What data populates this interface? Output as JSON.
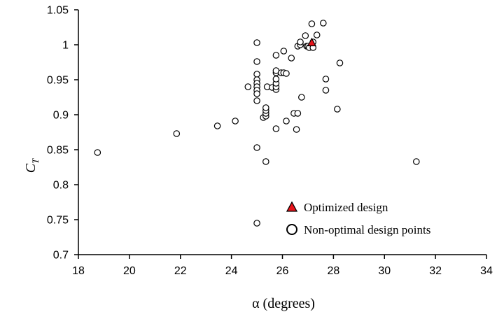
{
  "chart_data": {
    "type": "scatter",
    "xlabel": "α (degrees)",
    "ylabel": "C_T",
    "ylabel_main": "C",
    "ylabel_sub": "T",
    "xlim": [
      18,
      34
    ],
    "ylim": [
      0.7,
      1.05
    ],
    "x_ticks": [
      "18",
      "20",
      "22",
      "24",
      "26",
      "28",
      "30",
      "32",
      "34"
    ],
    "y_ticks": [
      "0.7",
      "0.75",
      "0.8",
      "0.85",
      "0.9",
      "0.95",
      "1",
      "1.05"
    ],
    "grid": false,
    "legend_position": "bottom-right",
    "series": [
      {
        "name": "Optimized design",
        "marker": "triangle",
        "color": "#e8141b",
        "points": [
          [
            27.15,
            1.003
          ]
        ]
      },
      {
        "name": "Non-optimal design points",
        "marker": "circle",
        "color": "#ffffff",
        "points": [
          [
            18.75,
            0.846
          ],
          [
            21.85,
            0.873
          ],
          [
            23.45,
            0.884
          ],
          [
            24.15,
            0.891
          ],
          [
            24.65,
            0.94
          ],
          [
            25.0,
            1.003
          ],
          [
            25.0,
            0.976
          ],
          [
            25.0,
            0.958
          ],
          [
            25.0,
            0.95
          ],
          [
            25.0,
            0.945
          ],
          [
            25.0,
            0.94
          ],
          [
            25.0,
            0.935
          ],
          [
            25.0,
            0.93
          ],
          [
            25.0,
            0.92
          ],
          [
            25.0,
            0.853
          ],
          [
            25.0,
            0.745
          ],
          [
            25.25,
            0.896
          ],
          [
            25.35,
            0.898
          ],
          [
            25.35,
            0.902
          ],
          [
            25.35,
            0.906
          ],
          [
            25.35,
            0.91
          ],
          [
            25.4,
            0.94
          ],
          [
            25.35,
            0.833
          ],
          [
            25.6,
            0.939
          ],
          [
            25.75,
            0.936
          ],
          [
            25.75,
            0.94
          ],
          [
            25.75,
            0.945
          ],
          [
            25.75,
            0.951
          ],
          [
            25.75,
            0.96
          ],
          [
            25.75,
            0.963
          ],
          [
            25.75,
            0.985
          ],
          [
            25.75,
            0.88
          ],
          [
            25.95,
            0.96
          ],
          [
            26.05,
            0.991
          ],
          [
            26.05,
            0.96
          ],
          [
            26.15,
            0.959
          ],
          [
            26.15,
            0.891
          ],
          [
            26.35,
            0.981
          ],
          [
            26.45,
            0.902
          ],
          [
            26.55,
            0.879
          ],
          [
            26.6,
            0.902
          ],
          [
            26.6,
            0.998
          ],
          [
            26.7,
            1.0
          ],
          [
            26.7,
            1.004
          ],
          [
            26.75,
            0.925
          ],
          [
            26.9,
            1.013
          ],
          [
            26.95,
            0.998
          ],
          [
            27.0,
            0.998
          ],
          [
            27.05,
            0.996
          ],
          [
            27.15,
            1.03
          ],
          [
            27.2,
            1.004
          ],
          [
            27.2,
            0.996
          ],
          [
            27.35,
            1.014
          ],
          [
            27.6,
            1.031
          ],
          [
            27.7,
            0.951
          ],
          [
            27.7,
            0.935
          ],
          [
            28.15,
            0.908
          ],
          [
            28.25,
            0.974
          ],
          [
            31.25,
            0.833
          ]
        ]
      }
    ]
  }
}
